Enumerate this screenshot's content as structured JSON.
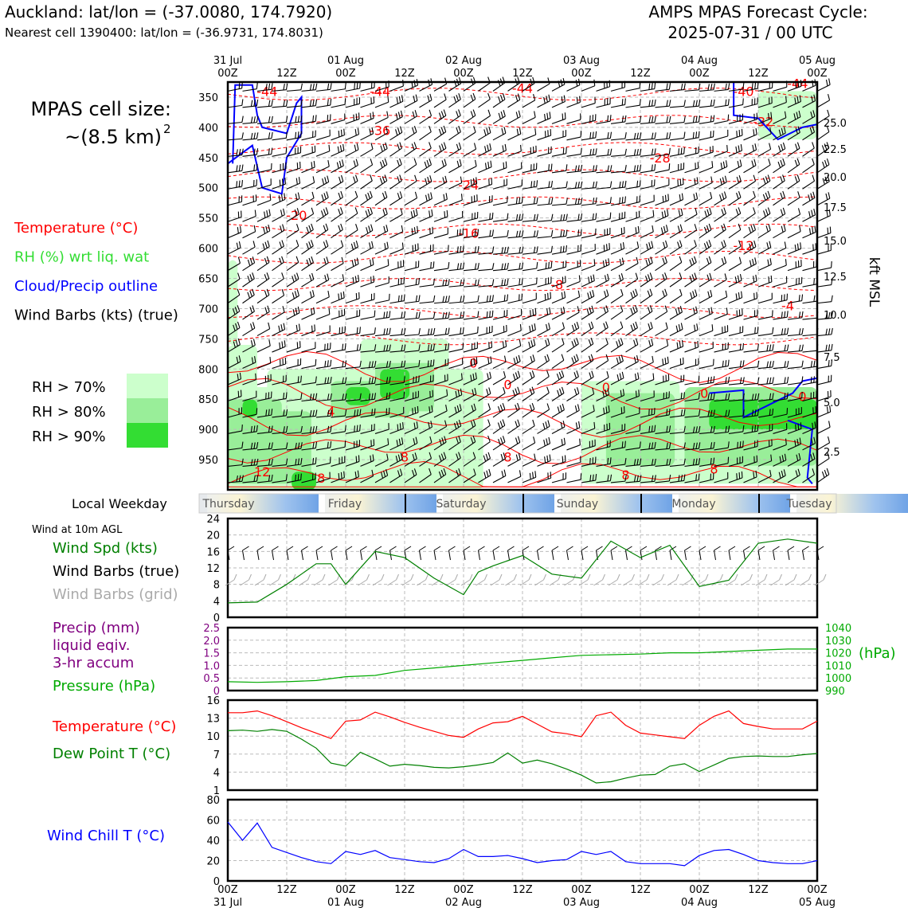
{
  "header": {
    "location": "Auckland: lat/lon = (-37.0080, 174.7920)",
    "nearest_cell": "Nearest cell 1390400: lat/lon = (-36.9731, 174.8031)",
    "cycle_title": "AMPS MPAS Forecast Cycle:",
    "cycle_time": "2025-07-31 / 00 UTC"
  },
  "left_panel": {
    "cell_size_line1": "MPAS cell size:",
    "cell_size_line2": "~(8.5 km)",
    "cell_size_sup": "2",
    "legend": [
      {
        "label": "Temperature (°C)",
        "color": "#ff0000"
      },
      {
        "label": "RH (%) wrt liq. wat",
        "color": "#33dd33"
      },
      {
        "label": "Cloud/Precip outline",
        "color": "#0000ff"
      },
      {
        "label": "Wind Barbs (kts) (true)",
        "color": "#000000"
      }
    ],
    "rh_legend": [
      {
        "label": "RH > 70%",
        "color": "#ccffcc"
      },
      {
        "label": "RH > 80%",
        "color": "#99ee99"
      },
      {
        "label": "RH > 90%",
        "color": "#33dd33"
      }
    ]
  },
  "time_axis": {
    "top_dates": [
      "31 Jul",
      "",
      "01 Aug",
      "",
      "02 Aug",
      "",
      "03 Aug",
      "",
      "04 Aug",
      "",
      "05 Aug"
    ],
    "hours": [
      "00Z",
      "12Z",
      "00Z",
      "12Z",
      "00Z",
      "12Z",
      "00Z",
      "12Z",
      "00Z",
      "12Z",
      "00Z"
    ],
    "bottom_dates": [
      "31 Jul",
      "",
      "01 Aug",
      "",
      "02 Aug",
      "",
      "03 Aug",
      "",
      "04 Aug",
      "",
      "05 Aug"
    ]
  },
  "weekday_bar": {
    "label": "Local Weekday",
    "days": [
      "Thursday",
      "Friday",
      "Saturday",
      "Sunday",
      "Monday",
      "Tuesday"
    ]
  },
  "chart_data": [
    {
      "type": "heatmap",
      "panel": "vertical-profile",
      "y_pressure_ticks": [
        350,
        400,
        450,
        500,
        550,
        600,
        650,
        700,
        750,
        800,
        850,
        900,
        950
      ],
      "y_right_kft_ticks": [
        "25.0",
        "22.5",
        "20.0",
        "17.5",
        "15.0",
        "12.5",
        "10.0",
        "7.5",
        "5.0",
        "2.5"
      ],
      "y_right_label": "kft MSL",
      "ylim_hpa": [
        1000,
        325
      ],
      "x_hours": [
        0,
        120
      ],
      "temperature_contour_labels": [
        {
          "value": "-44",
          "hour": 8,
          "p": 340
        },
        {
          "value": "-44",
          "hour": 31,
          "p": 340
        },
        {
          "value": "-44",
          "hour": 60,
          "p": 335
        },
        {
          "value": "-40",
          "hour": 105,
          "p": 340
        },
        {
          "value": "-44",
          "hour": 116,
          "p": 327
        },
        {
          "value": "-32",
          "hour": 109,
          "p": 390
        },
        {
          "value": "-36",
          "hour": 31,
          "p": 405
        },
        {
          "value": "-28",
          "hour": 88,
          "p": 450
        },
        {
          "value": "-24",
          "hour": 49,
          "p": 495
        },
        {
          "value": "-20",
          "hour": 14,
          "p": 545
        },
        {
          "value": "-16",
          "hour": 49,
          "p": 575
        },
        {
          "value": "-12",
          "hour": 105,
          "p": 595
        },
        {
          "value": "-8",
          "hour": 67,
          "p": 660
        },
        {
          "value": "-4",
          "hour": 114,
          "p": 695
        },
        {
          "value": "0",
          "hour": 50,
          "p": 790
        },
        {
          "value": "0",
          "hour": 57,
          "p": 825
        },
        {
          "value": "0",
          "hour": 77,
          "p": 830
        },
        {
          "value": "0",
          "hour": 97,
          "p": 840
        },
        {
          "value": "0",
          "hour": 117,
          "p": 845
        },
        {
          "value": "4",
          "hour": 21,
          "p": 870
        },
        {
          "value": "8",
          "hour": 36,
          "p": 945
        },
        {
          "value": "8",
          "hour": 57,
          "p": 945
        },
        {
          "value": "8",
          "hour": 81,
          "p": 975
        },
        {
          "value": "8",
          "hour": 99,
          "p": 965
        },
        {
          "value": "12",
          "hour": 7,
          "p": 970
        },
        {
          "value": "8",
          "hour": 19,
          "p": 980
        }
      ]
    },
    {
      "type": "line",
      "panel": "wind",
      "title": "Wind at 10m AGL",
      "legend": [
        {
          "label": "Wind Spd (kts)",
          "color": "#008000"
        },
        {
          "label": "Wind Barbs (true)",
          "color": "#000000"
        },
        {
          "label": "Wind Barbs (grid)",
          "color": "#aaaaaa"
        }
      ],
      "yticks": [
        0,
        4,
        8,
        12,
        16,
        20,
        24
      ],
      "ylim": [
        0,
        24
      ],
      "x_hours": [
        0,
        6,
        12,
        18,
        21,
        24,
        30,
        36,
        42,
        48,
        51,
        54,
        60,
        66,
        72,
        78,
        84,
        90,
        96,
        102,
        108,
        114,
        120
      ],
      "series": [
        {
          "name": "Wind Spd (kts)",
          "values": [
            3.5,
            3.7,
            8,
            13,
            13,
            8,
            16,
            14.5,
            9.5,
            5.5,
            11,
            12.5,
            15,
            10.5,
            9.5,
            18.5,
            14.5,
            17.5,
            7.5,
            9,
            18,
            19,
            18
          ]
        }
      ]
    },
    {
      "type": "line",
      "panel": "precip-pressure",
      "legend": [
        {
          "label": "Precip (mm)",
          "color": "#800080"
        },
        {
          "label": "liquid eqiv.",
          "color": "#800080"
        },
        {
          "label": "3-hr accum",
          "color": "#800080"
        },
        {
          "label": "Pressure (hPa)",
          "color": "#00aa00"
        }
      ],
      "yticks_left": [
        "2.5",
        "2.0",
        "1.5",
        "1.0",
        "0.5",
        "0"
      ],
      "ylim_left": [
        0,
        2.5
      ],
      "yticks_right": [
        "1040",
        "1030",
        "1020",
        "1010",
        "1000",
        "990"
      ],
      "ylim_right": [
        990,
        1040
      ],
      "right_label": "(hPa)",
      "x_hours": [
        0,
        6,
        12,
        18,
        24,
        30,
        36,
        42,
        48,
        54,
        60,
        66,
        72,
        78,
        84,
        90,
        96,
        102,
        108,
        114,
        120
      ],
      "series": [
        {
          "name": "Pressure (hPa)",
          "values": [
            997,
            996.5,
            997,
            998,
            1001,
            1002,
            1006,
            1008,
            1010,
            1012,
            1014,
            1016,
            1018,
            1018.5,
            1019,
            1020,
            1020,
            1021,
            1022,
            1023,
            1023
          ]
        }
      ]
    },
    {
      "type": "line",
      "panel": "temperature",
      "legend": [
        {
          "label": "Temperature (°C)",
          "color": "#ff0000"
        },
        {
          "label": "Dew Point T (°C)",
          "color": "#008000"
        }
      ],
      "yticks": [
        1,
        4,
        7,
        10,
        13,
        16
      ],
      "ylim": [
        1,
        16
      ],
      "x_hours": [
        0,
        3,
        6,
        9,
        12,
        15,
        18,
        21,
        24,
        27,
        30,
        33,
        36,
        39,
        42,
        45,
        48,
        51,
        54,
        57,
        60,
        63,
        66,
        69,
        72,
        75,
        78,
        81,
        84,
        87,
        90,
        93,
        96,
        99,
        102,
        105,
        108,
        111,
        114,
        117,
        120
      ],
      "series": [
        {
          "name": "Temperature (°C)",
          "values": [
            13.9,
            13.9,
            14.2,
            13.4,
            12.4,
            11.4,
            10.5,
            9.6,
            12.5,
            12.7,
            14.0,
            13.2,
            12.3,
            11.5,
            10.8,
            10.1,
            9.8,
            11.2,
            12.2,
            12.4,
            13.3,
            12.0,
            10.7,
            10.4,
            9.9,
            13.4,
            14.0,
            11.8,
            10.5,
            10.2,
            9.9,
            9.6,
            11.8,
            13.3,
            14.2,
            12.1,
            11.6,
            11.2,
            11.2,
            11.2,
            12.5
          ]
        },
        {
          "name": "Dew Point T (°C)",
          "values": [
            10.9,
            11.0,
            10.8,
            11.1,
            10.8,
            9.5,
            8.0,
            5.5,
            5.0,
            7.3,
            6.2,
            5.0,
            5.3,
            5.1,
            4.8,
            4.7,
            4.9,
            5.2,
            5.6,
            7.2,
            5.5,
            6.0,
            5.4,
            4.5,
            3.5,
            2.2,
            2.4,
            3.0,
            3.5,
            3.6,
            5.0,
            5.4,
            4.1,
            5.2,
            6.3,
            6.6,
            6.7,
            6.6,
            6.6,
            6.9,
            7.1
          ]
        }
      ]
    },
    {
      "type": "line",
      "panel": "wind-chill",
      "legend": [
        {
          "label": "Wind Chill T (°C)",
          "color": "#0000ff"
        }
      ],
      "yticks": [
        0,
        20,
        40,
        60,
        80
      ],
      "ylim": [
        0,
        80
      ],
      "x_hours": [
        0,
        3,
        6,
        9,
        12,
        15,
        18,
        21,
        24,
        27,
        30,
        33,
        36,
        39,
        42,
        45,
        48,
        51,
        54,
        57,
        60,
        63,
        66,
        69,
        72,
        75,
        78,
        81,
        84,
        87,
        90,
        93,
        96,
        99,
        102,
        105,
        108,
        111,
        114,
        117,
        120
      ],
      "series": [
        {
          "name": "Wind Chill T (°C)",
          "values": [
            58,
            40,
            57,
            33,
            28,
            23,
            19,
            17,
            29,
            26,
            30,
            23,
            21,
            19,
            18,
            22,
            31,
            24,
            24,
            25,
            22,
            18,
            20,
            21,
            29,
            26,
            29,
            19,
            17,
            17,
            17,
            15,
            25,
            30,
            31,
            26,
            20,
            18,
            17,
            17,
            20
          ]
        }
      ]
    }
  ],
  "colors": {
    "temperature": "#ff0000",
    "rh": "#33dd33",
    "cloud": "#0000ff",
    "wind_spd": "#008000",
    "pressure": "#00aa00",
    "precip": "#800080",
    "dewpoint": "#008000",
    "windchill": "#0000ff",
    "grid": "#bbbbbb"
  }
}
